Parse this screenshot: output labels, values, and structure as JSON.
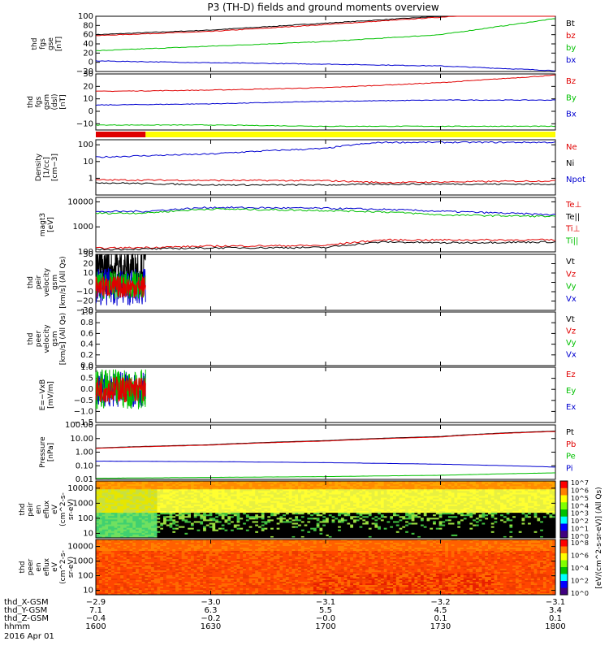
{
  "title": "P3 (TH-D) fields and ground moments overview",
  "colors": {
    "black": "#000000",
    "red": "#e00000",
    "green": "#00c000",
    "blue": "#0000d0",
    "yellow": "#ffff00"
  },
  "chart_data": [
    {
      "type": "line",
      "panel": "fgs_gse",
      "ylabel_lines": [
        "thd",
        "fgs",
        "gse",
        "[nT]"
      ],
      "yticks": [
        "100",
        "80",
        "60",
        "40",
        "20",
        "0",
        "−20"
      ],
      "ylim": [
        -20,
        100
      ],
      "legend": [
        "Bt",
        "bz",
        "by",
        "bx"
      ],
      "x": [
        1600,
        1630,
        1700,
        1730,
        1800
      ],
      "series": [
        {
          "name": "Bt",
          "color": "black",
          "values": [
            60,
            70,
            85,
            100,
            120
          ]
        },
        {
          "name": "bz",
          "color": "red",
          "values": [
            58,
            67,
            82,
            98,
            118
          ]
        },
        {
          "name": "by",
          "color": "green",
          "values": [
            25,
            35,
            45,
            60,
            95
          ]
        },
        {
          "name": "bx",
          "color": "blue",
          "values": [
            3,
            -1,
            -4,
            -8,
            -18
          ]
        }
      ]
    },
    {
      "type": "line",
      "panel": "fgs_gsm",
      "ylabel_lines": [
        "thd",
        "fgs",
        "gsm",
        "(dsl)",
        "[nT]"
      ],
      "yticks": [
        "30",
        "20",
        "10",
        "0",
        "−10"
      ],
      "ylim": [
        -15,
        30
      ],
      "legend": [
        "Bz",
        "By",
        "Bx"
      ],
      "x": [
        1600,
        1630,
        1700,
        1730,
        1800
      ],
      "series": [
        {
          "name": "Bz",
          "color": "red",
          "values": [
            16,
            17,
            19,
            23,
            29
          ]
        },
        {
          "name": "By",
          "color": "blue",
          "values": [
            5,
            6,
            8,
            9,
            9
          ]
        },
        {
          "name": "Bx",
          "color": "green",
          "values": [
            -11,
            -11,
            -12,
            -12,
            -12
          ]
        }
      ]
    },
    {
      "type": "bar",
      "panel": "mode_bar",
      "segments": [
        {
          "x": [
            1600,
            1613
          ],
          "color": "red"
        },
        {
          "x": [
            1613,
            1800
          ],
          "color": "yellow"
        }
      ]
    },
    {
      "type": "line",
      "panel": "density",
      "ylabel_lines": [
        "Density",
        "[1/cc]",
        "[cm−3]"
      ],
      "yticks": [
        "100",
        "10",
        "1"
      ],
      "ylim": [
        0.1,
        200
      ],
      "log": true,
      "legend": [
        "Ne",
        "Ni",
        "Npot"
      ],
      "x": [
        1600,
        1630,
        1700,
        1715,
        1730,
        1800
      ],
      "series": [
        {
          "name": "Ne",
          "color": "blue",
          "values": [
            18,
            28,
            60,
            140,
            140,
            140
          ]
        },
        {
          "name": "Ni",
          "color": "red",
          "values": [
            0.8,
            0.75,
            0.72,
            0.55,
            0.6,
            0.7
          ]
        },
        {
          "name": "Npot",
          "color": "black",
          "values": [
            0.55,
            0.4,
            0.4,
            0.45,
            0.45,
            0.45
          ]
        }
      ]
    },
    {
      "type": "line",
      "panel": "temperature",
      "ylabel_lines": [
        "magt3",
        "[eV]"
      ],
      "yticks": [
        "10000",
        "1000",
        "100"
      ],
      "ylim": [
        100,
        15000
      ],
      "log": true,
      "legend": [
        "Te⊥",
        "Te||",
        "Ti⊥",
        "Ti||"
      ],
      "x": [
        1600,
        1613,
        1630,
        1700,
        1715,
        1730,
        1800
      ],
      "series": [
        {
          "name": "Te⊥",
          "color": "blue",
          "values": [
            4000,
            4200,
            6000,
            5500,
            5000,
            4200,
            3000
          ]
        },
        {
          "name": "Te||",
          "color": "green",
          "values": [
            3500,
            3600,
            5200,
            4500,
            4000,
            3000,
            2600
          ]
        },
        {
          "name": "Ti⊥",
          "color": "red",
          "values": [
            140,
            150,
            170,
            180,
            300,
            300,
            300
          ]
        },
        {
          "name": "Ti||",
          "color": "black",
          "values": [
            125,
            130,
            145,
            150,
            250,
            230,
            250
          ]
        }
      ]
    },
    {
      "type": "line",
      "panel": "peir_velocity",
      "ylabel_lines": [
        "thd",
        "peir",
        "velocity",
        "gsm",
        "[km/s] (All Qs)"
      ],
      "yticks": [
        "30",
        "20",
        "10",
        "0",
        "−10",
        "−20",
        "−30"
      ],
      "ylim": [
        -30,
        30
      ],
      "legend": [
        "Vt",
        "Vz",
        "Vy",
        "Vx"
      ],
      "x_range": [
        1600,
        1613
      ]
    },
    {
      "type": "line",
      "panel": "peer_velocity",
      "ylabel_lines": [
        "thd",
        "peer",
        "velocity",
        "gsm",
        "[km/s] (All Qs)"
      ],
      "yticks": [
        "1.0",
        "0.8",
        "0.6",
        "0.4",
        "0.2",
        "0.0"
      ],
      "ylim": [
        0,
        1
      ],
      "legend": [
        "Vt",
        "Vz",
        "Vy",
        "Vx"
      ]
    },
    {
      "type": "line",
      "panel": "efield",
      "ylabel_lines": [
        "E=−VxB",
        "[mV/m]"
      ],
      "yticks": [
        "1.0",
        "0.5",
        "0.0",
        "−0.5",
        "−1.0",
        "−1.5"
      ],
      "ylim": [
        -1.5,
        1.0
      ],
      "legend": [
        "Ez",
        "Ey",
        "Ex"
      ],
      "x_range": [
        1600,
        1613
      ]
    },
    {
      "type": "line",
      "panel": "pressure",
      "ylabel_lines": [
        "Pressure",
        "[nPa]"
      ],
      "yticks": [
        "100.00",
        "10.00",
        "1.00",
        "0.10",
        "0.01"
      ],
      "ylim": [
        0.01,
        100
      ],
      "log": true,
      "legend": [
        "Pt",
        "Pb",
        "Pe",
        "Pi"
      ],
      "x": [
        1600,
        1630,
        1700,
        1730,
        1800
      ],
      "series": [
        {
          "name": "Pt",
          "color": "black",
          "values": [
            2.0,
            3.5,
            7,
            14,
            35
          ]
        },
        {
          "name": "Pb",
          "color": "red",
          "values": [
            1.9,
            3.3,
            6.5,
            13,
            33
          ]
        },
        {
          "name": "Pe",
          "color": "blue",
          "values": [
            0.22,
            0.2,
            0.17,
            0.13,
            0.08
          ]
        },
        {
          "name": "Pi",
          "color": "green",
          "values": [
            0.012,
            0.014,
            0.016,
            0.02,
            0.03
          ]
        }
      ]
    },
    {
      "type": "heatmap",
      "panel": "peir_spectrogram",
      "ylabel_lines": [
        "thd",
        "peir",
        "en",
        "eflux",
        "eV",
        "(cm^2-s-",
        "sr-eV)"
      ],
      "yticks": [
        "10000",
        "1000",
        "100",
        "10"
      ],
      "ylim": [
        5,
        30000
      ],
      "log": true
    },
    {
      "type": "heatmap",
      "panel": "peer_spectrogram",
      "ylabel_lines": [
        "thd",
        "peer",
        "en",
        "eflux",
        "eV",
        "(cm^2-s-",
        "sr-eV)"
      ],
      "yticks": [
        "10000",
        "1000",
        "100",
        "10"
      ],
      "ylim": [
        5,
        30000
      ],
      "log": true
    }
  ],
  "colorbar": {
    "labels_top": [
      "10^7",
      "10^6",
      "10^5",
      "10^4",
      "10^3",
      "10^2",
      "10^1",
      "10^0"
    ],
    "labels_bottom": [
      "10^8",
      "10^6",
      "10^4",
      "10^2",
      "10^0"
    ],
    "title": "[eV/(cm^2-s-sr-eV)] (All Qs)"
  },
  "x_axis": {
    "tick_x": [
      1600,
      1630,
      1700,
      1730,
      1800
    ],
    "rows": [
      {
        "label": "thd_X-GSM",
        "values": [
          "−2.9",
          "−3.0",
          "−3.1",
          "−3.2",
          "−3.1"
        ]
      },
      {
        "label": "thd_Y-GSM",
        "values": [
          "7.1",
          "6.3",
          "5.5",
          "4.5",
          "3.4"
        ]
      },
      {
        "label": "thd_Z-GSM",
        "values": [
          "−0.4",
          "−0.2",
          "−0.0",
          "0.1",
          "0.1"
        ]
      },
      {
        "label": "hhmm",
        "values": [
          "1600",
          "1630",
          "1700",
          "1730",
          "1800"
        ]
      }
    ],
    "date": "2016 Apr 01"
  }
}
